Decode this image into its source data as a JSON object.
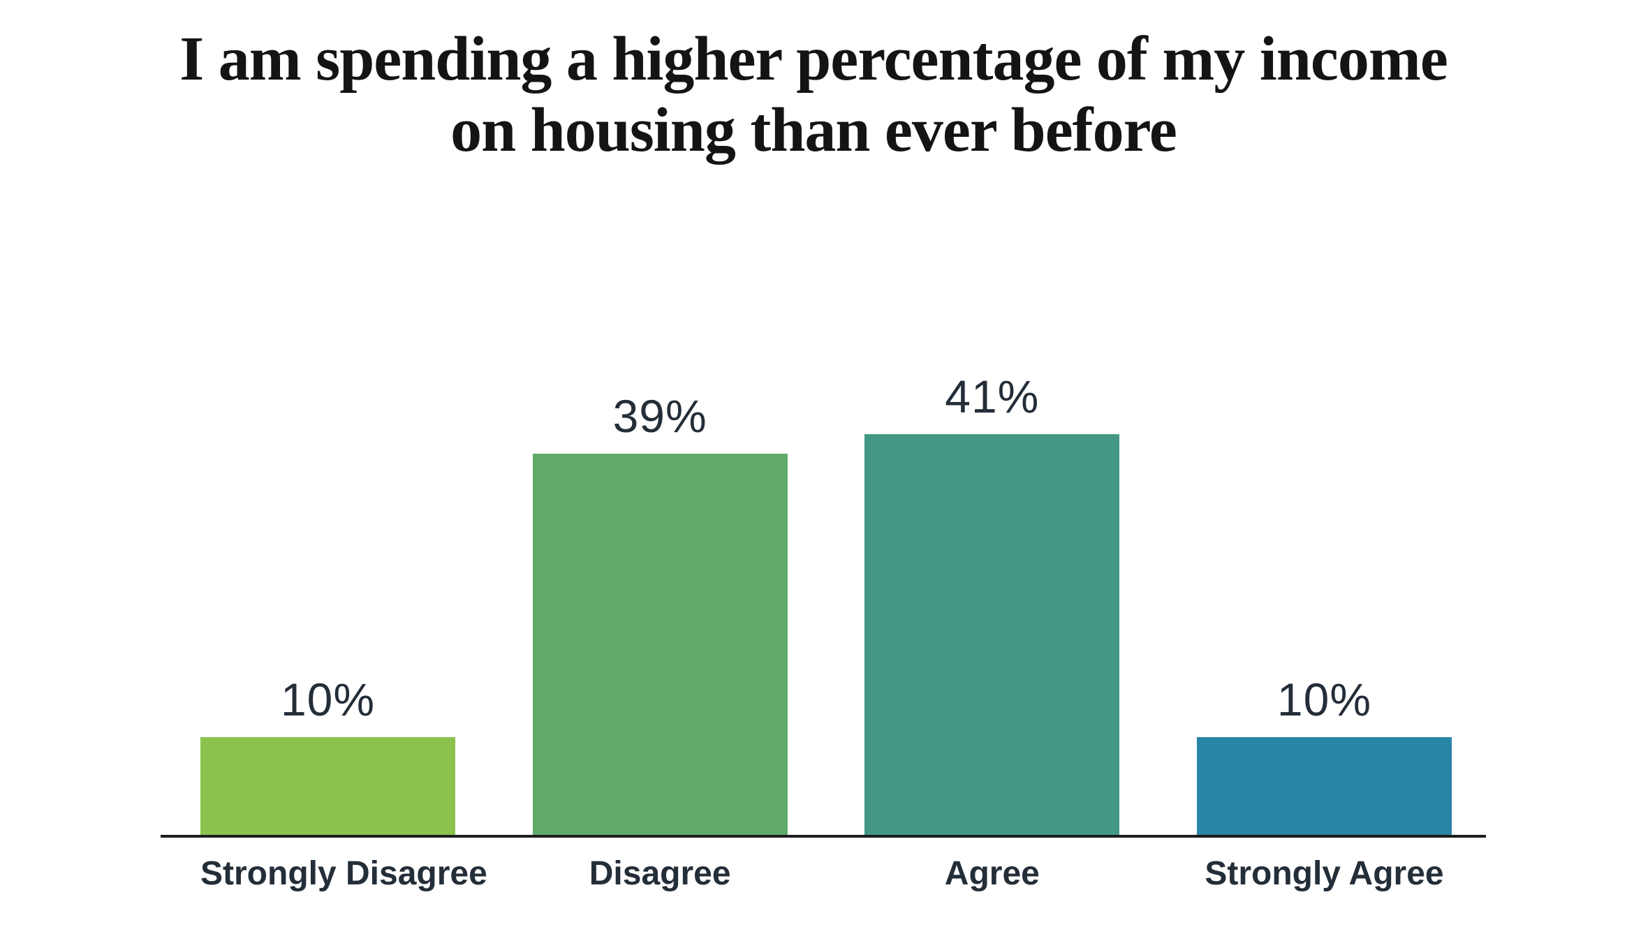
{
  "page": {
    "background": "#FFFFFF"
  },
  "title": {
    "line1": "I am spending a higher percentage of my income",
    "line2": "on housing than ever before",
    "color": "#141414"
  },
  "chart_data": {
    "type": "bar",
    "title": "I am spending a higher percentage of my income on housing than ever before",
    "categories": [
      "Strongly Disagree",
      "Disagree",
      "Agree",
      "Strongly Agree"
    ],
    "values": [
      10,
      39,
      41,
      10
    ],
    "value_labels": [
      "10%",
      "39%",
      "41%",
      "10%"
    ],
    "bar_colors": [
      "#8BC34E",
      "#5FAA68",
      "#429882",
      "#2885A5"
    ],
    "xlabel": "",
    "ylabel": "",
    "ylim": [
      0,
      45
    ],
    "grid": false,
    "legend": false,
    "y_axis_visible": false,
    "x_axis_line_color": "#1D1D1D",
    "label_color": "#242E39"
  }
}
